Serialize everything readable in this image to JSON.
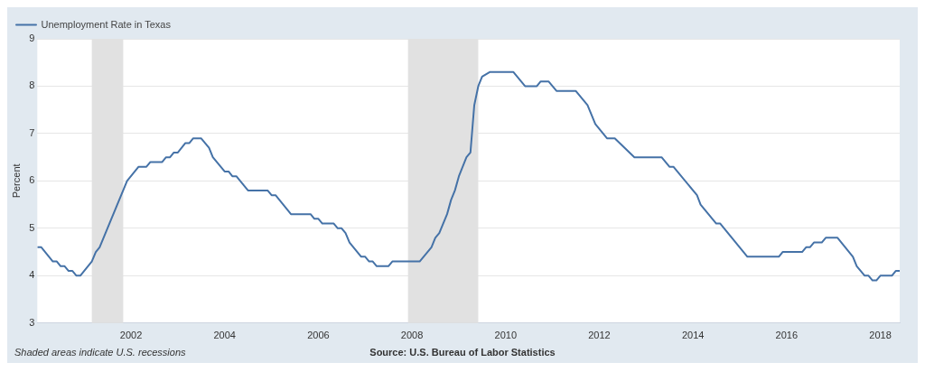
{
  "chart_data": {
    "type": "line",
    "ylabel": "Percent",
    "x": [
      "2000-01",
      "2000-02",
      "2000-05",
      "2000-06",
      "2000-07",
      "2000-08",
      "2000-09",
      "2000-10",
      "2000-11",
      "2000-12",
      "2001-03",
      "2001-04",
      "2001-05",
      "2001-12",
      "2002-03",
      "2002-05",
      "2002-06",
      "2002-09",
      "2002-10",
      "2002-11",
      "2002-12",
      "2003-01",
      "2003-03",
      "2003-04",
      "2003-05",
      "2003-07",
      "2003-09",
      "2003-10",
      "2004-01",
      "2004-02",
      "2004-03",
      "2004-04",
      "2004-07",
      "2004-12",
      "2005-01",
      "2005-02",
      "2005-06",
      "2005-11",
      "2005-12",
      "2006-01",
      "2006-02",
      "2006-05",
      "2006-06",
      "2006-07",
      "2006-08",
      "2006-09",
      "2006-12",
      "2007-01",
      "2007-02",
      "2007-03",
      "2007-04",
      "2007-07",
      "2007-08",
      "2008-03",
      "2008-06",
      "2008-07",
      "2008-08",
      "2008-10",
      "2008-11",
      "2008-12",
      "2009-01",
      "2009-03",
      "2009-04",
      "2009-05",
      "2009-06",
      "2009-07",
      "2009-09",
      "2010-03",
      "2010-06",
      "2010-09",
      "2010-10",
      "2010-12",
      "2011-02",
      "2011-07",
      "2011-10",
      "2011-12",
      "2012-03",
      "2012-05",
      "2012-10",
      "2013-05",
      "2013-07",
      "2013-08",
      "2014-02",
      "2014-03",
      "2014-07",
      "2014-08",
      "2015-03",
      "2015-11",
      "2015-12",
      "2016-05",
      "2016-06",
      "2016-07",
      "2016-08",
      "2016-10",
      "2016-11",
      "2017-02",
      "2017-06",
      "2017-07",
      "2017-09",
      "2017-10",
      "2017-11",
      "2017-12",
      "2018-01",
      "2018-04",
      "2018-05",
      "2018-06"
    ],
    "series": [
      {
        "name": "Unemployment Rate in Texas",
        "color": "#4572a7",
        "values": [
          4.6,
          4.6,
          4.3,
          4.3,
          4.2,
          4.2,
          4.1,
          4.1,
          4.0,
          4.0,
          4.3,
          4.5,
          4.6,
          6.0,
          6.3,
          6.3,
          6.4,
          6.4,
          6.5,
          6.5,
          6.6,
          6.6,
          6.8,
          6.8,
          6.9,
          6.9,
          6.7,
          6.5,
          6.2,
          6.2,
          6.1,
          6.1,
          5.8,
          5.8,
          5.7,
          5.7,
          5.3,
          5.3,
          5.2,
          5.2,
          5.1,
          5.1,
          5.0,
          5.0,
          4.9,
          4.7,
          4.4,
          4.4,
          4.3,
          4.3,
          4.2,
          4.2,
          4.3,
          4.3,
          4.6,
          4.8,
          4.9,
          5.3,
          5.6,
          5.8,
          6.1,
          6.5,
          6.6,
          7.6,
          8.0,
          8.2,
          8.3,
          8.3,
          8.0,
          8.0,
          8.1,
          8.1,
          7.9,
          7.9,
          7.6,
          7.2,
          6.9,
          6.9,
          6.5,
          6.5,
          6.3,
          6.3,
          5.7,
          5.5,
          5.1,
          5.1,
          4.4,
          4.4,
          4.5,
          4.5,
          4.6,
          4.6,
          4.7,
          4.7,
          4.8,
          4.8,
          4.4,
          4.2,
          4.0,
          4.0,
          3.9,
          3.9,
          4.0,
          4.0,
          4.1,
          4.1
        ]
      }
    ],
    "xlim": [
      "2000-01",
      "2018-06"
    ],
    "xticks": [
      "2002",
      "2004",
      "2006",
      "2008",
      "2010",
      "2012",
      "2014",
      "2016",
      "2018"
    ],
    "ylim": [
      3,
      9
    ],
    "yticks": [
      3,
      4,
      5,
      6,
      7,
      8,
      9
    ],
    "grid": "y",
    "legend": "top left",
    "line_style": "solid",
    "marker": "none",
    "bands": [
      {
        "axis": "x",
        "from": "2001-03",
        "to": "2001-11",
        "color": "#e1e1e1"
      },
      {
        "axis": "x",
        "from": "2007-12",
        "to": "2009-06",
        "color": "#e1e1e1"
      }
    ],
    "annotations": [
      "Shaded areas indicate U.S. recessions",
      "Source: U.S. Bureau of Labor Statistics"
    ]
  }
}
